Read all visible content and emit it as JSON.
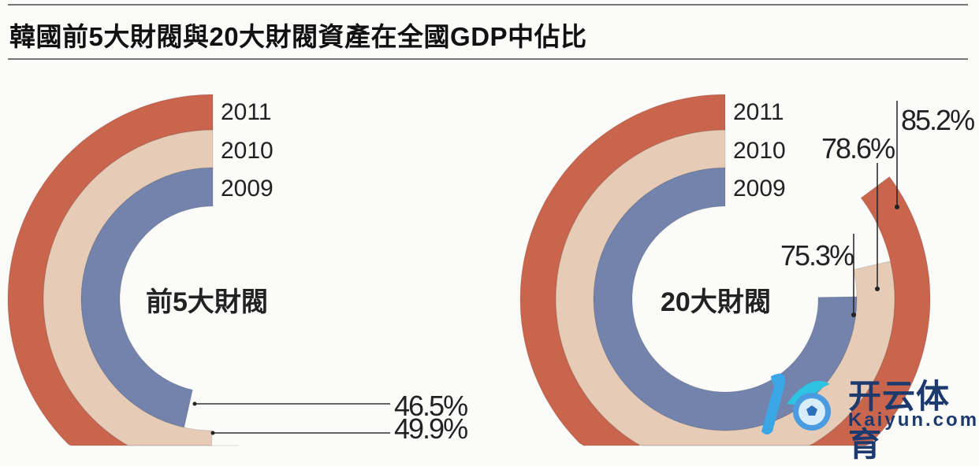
{
  "title": "韓國前5大財閥與20大財閥資產在全國GDP中佔比",
  "colors": {
    "2011": "#c9644d",
    "2010": "#e6cbb6",
    "2009": "#7383ab"
  },
  "chart_data": [
    {
      "type": "radial-bar",
      "center_label": "前5大財閥",
      "series": [
        {
          "name": "2011",
          "value": null,
          "label": ""
        },
        {
          "name": "2010",
          "value": 49.9,
          "label": "49.9%"
        },
        {
          "name": "2009",
          "value": 46.5,
          "label": "46.5%"
        }
      ],
      "unit": "% of GDP",
      "direction": "counterclockwise from top"
    },
    {
      "type": "radial-bar",
      "center_label": "20大財閥",
      "series": [
        {
          "name": "2011",
          "value": 85.2,
          "label": "85.2%"
        },
        {
          "name": "2010",
          "value": 78.6,
          "label": "78.6%"
        },
        {
          "name": "2009",
          "value": 75.3,
          "label": "75.3%"
        }
      ],
      "unit": "% of GDP",
      "direction": "counterclockwise from top"
    }
  ],
  "legend_years": [
    "2011",
    "2010",
    "2009"
  ],
  "watermark": {
    "cn": "开云体育",
    "en": "Kaiyun.com"
  }
}
